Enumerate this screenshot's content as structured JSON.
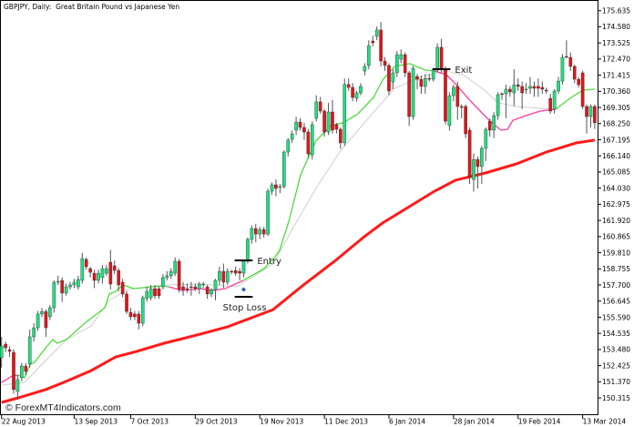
{
  "chart_data": {
    "type": "candlestick",
    "title": "GBPJPY, Daily:  Great Britain Pound vs Japanese Yen",
    "watermark": "© ForexMT4Indicators.com",
    "ylim": [
      149.3,
      176.2
    ],
    "y_ticks": [
      "175.635",
      "174.580",
      "173.525",
      "172.470",
      "171.415",
      "170.360",
      "169.305",
      "168.250",
      "167.195",
      "166.140",
      "165.085",
      "164.030",
      "162.975",
      "161.920",
      "160.865",
      "159.810",
      "158.755",
      "157.700",
      "156.645",
      "155.590",
      "154.535",
      "153.480",
      "152.425",
      "151.370",
      "150.315"
    ],
    "x_ticks": [
      {
        "bar": 0,
        "label": "22 Aug 2013"
      },
      {
        "bar": 18,
        "label": "13 Sep 2013"
      },
      {
        "bar": 32,
        "label": "7 Oct 2013"
      },
      {
        "bar": 48,
        "label": "29 Oct 2013"
      },
      {
        "bar": 64,
        "label": "19 Nov 2013"
      },
      {
        "bar": 80,
        "label": "11 Dec 2013"
      },
      {
        "bar": 96,
        "label": "6 Jan 2014"
      },
      {
        "bar": 112,
        "label": "28 Jan 2014"
      },
      {
        "bar": 128,
        "label": "19 Feb 2014"
      },
      {
        "bar": 144,
        "label": "13 Mar 2014"
      }
    ],
    "colors": {
      "bull": "#1ee07f",
      "bear": "#e0151a",
      "wick": "#555555",
      "slow_ma": "#ff1a1a",
      "fast_up": "#4cdc3c",
      "fast_down": "#ff3aa0",
      "mid_ma": "#cfcfcf",
      "annotation": "#000000",
      "stop_marker": "#1f5fb0"
    },
    "ohlc": [
      [
        152.94,
        154.3,
        152.3,
        153.71
      ],
      [
        153.83,
        154.0,
        153.3,
        153.59
      ],
      [
        153.47,
        153.7,
        153.0,
        153.36
      ],
      [
        153.3,
        153.5,
        150.6,
        150.86
      ],
      [
        150.74,
        151.8,
        150.2,
        151.51
      ],
      [
        151.63,
        152.6,
        151.4,
        152.4
      ],
      [
        152.4,
        152.6,
        151.8,
        152.05
      ],
      [
        152.52,
        154.8,
        152.3,
        154.31
      ],
      [
        154.31,
        155.2,
        154.0,
        154.9
      ],
      [
        154.9,
        156.0,
        154.7,
        155.8
      ],
      [
        155.8,
        156.2,
        155.6,
        155.97
      ],
      [
        155.97,
        156.1,
        154.3,
        154.9
      ],
      [
        155.62,
        156.4,
        155.4,
        156.21
      ],
      [
        156.21,
        158.0,
        155.9,
        157.88
      ],
      [
        157.88,
        158.3,
        157.7,
        157.94
      ],
      [
        158.0,
        158.2,
        156.6,
        157.17
      ],
      [
        157.17,
        157.8,
        157.0,
        157.58
      ],
      [
        157.58,
        157.9,
        157.4,
        157.7
      ],
      [
        157.7,
        158.1,
        157.5,
        157.88
      ],
      [
        157.58,
        158.3,
        157.4,
        158.06
      ],
      [
        158.0,
        159.8,
        157.8,
        159.43
      ],
      [
        159.37,
        159.5,
        158.7,
        158.89
      ],
      [
        158.77,
        158.9,
        158.2,
        158.53
      ],
      [
        158.47,
        158.7,
        157.5,
        158.0
      ],
      [
        158.0,
        158.7,
        157.8,
        158.47
      ],
      [
        158.18,
        159.0,
        157.8,
        158.77
      ],
      [
        158.47,
        159.0,
        158.3,
        158.77
      ],
      [
        159.19,
        160.0,
        157.4,
        157.76
      ],
      [
        158.95,
        159.3,
        158.4,
        158.65
      ],
      [
        158.65,
        158.8,
        157.3,
        157.7
      ],
      [
        157.88,
        158.1,
        156.9,
        157.11
      ],
      [
        157.11,
        157.3,
        155.8,
        155.97
      ],
      [
        155.91,
        156.2,
        155.4,
        155.62
      ],
      [
        155.8,
        156.0,
        155.4,
        155.62
      ],
      [
        155.8,
        156.0,
        154.8,
        155.2
      ],
      [
        155.2,
        157.0,
        155.0,
        156.87
      ],
      [
        156.81,
        157.6,
        156.6,
        157.28
      ],
      [
        156.87,
        157.7,
        156.7,
        157.46
      ],
      [
        157.46,
        157.7,
        156.8,
        156.99
      ],
      [
        157.46,
        157.6,
        156.8,
        156.99
      ],
      [
        157.58,
        158.4,
        157.4,
        158.18
      ],
      [
        158.18,
        158.6,
        158.0,
        158.3
      ],
      [
        158.3,
        158.8,
        158.1,
        158.59
      ],
      [
        158.47,
        159.5,
        158.3,
        159.25
      ],
      [
        159.25,
        159.4,
        157.2,
        157.4
      ],
      [
        157.58,
        157.9,
        157.0,
        157.4
      ],
      [
        157.46,
        157.8,
        157.2,
        157.4
      ],
      [
        157.58,
        157.9,
        157.0,
        157.55
      ],
      [
        157.58,
        157.8,
        157.3,
        157.46
      ],
      [
        157.46,
        157.9,
        157.1,
        157.76
      ],
      [
        157.7,
        157.9,
        157.5,
        157.76
      ],
      [
        157.58,
        157.7,
        156.8,
        157.11
      ],
      [
        157.11,
        157.5,
        156.9,
        157.4
      ],
      [
        157.4,
        158.1,
        156.7,
        158.0
      ],
      [
        158.0,
        158.9,
        157.7,
        158.59
      ],
      [
        158.59,
        159.1,
        157.5,
        157.88
      ],
      [
        157.88,
        158.8,
        157.7,
        158.59
      ],
      [
        158.59,
        158.7,
        158.4,
        158.56
      ],
      [
        158.65,
        158.9,
        158.3,
        158.47
      ],
      [
        158.59,
        158.8,
        158.0,
        158.47
      ],
      [
        158.47,
        159.3,
        158.2,
        159.25
      ],
      [
        159.25,
        160.8,
        159.1,
        160.68
      ],
      [
        160.68,
        161.6,
        160.4,
        161.39
      ],
      [
        161.39,
        161.7,
        160.5,
        161.03
      ],
      [
        161.03,
        161.5,
        160.7,
        161.33
      ],
      [
        161.33,
        161.5,
        160.8,
        161.03
      ],
      [
        161.03,
        164.0,
        160.9,
        163.83
      ],
      [
        163.83,
        164.4,
        163.6,
        164.25
      ],
      [
        164.25,
        164.6,
        163.5,
        164.01
      ],
      [
        164.13,
        164.3,
        163.7,
        164.13
      ],
      [
        164.13,
        166.5,
        164.0,
        166.39
      ],
      [
        166.39,
        167.3,
        166.1,
        167.17
      ],
      [
        167.22,
        167.8,
        167.0,
        167.58
      ],
      [
        167.82,
        168.7,
        167.5,
        168.35
      ],
      [
        168.35,
        168.6,
        167.8,
        168.0
      ],
      [
        168.0,
        168.3,
        167.2,
        167.7
      ],
      [
        167.7,
        167.9,
        166.0,
        166.27
      ],
      [
        166.21,
        168.4,
        165.9,
        168.18
      ],
      [
        168.59,
        170.1,
        168.4,
        169.67
      ],
      [
        169.67,
        170.0,
        168.9,
        169.07
      ],
      [
        169.07,
        169.2,
        167.4,
        167.7
      ],
      [
        167.7,
        169.6,
        167.5,
        169.01
      ],
      [
        169.01,
        169.8,
        167.6,
        167.82
      ],
      [
        168.18,
        168.3,
        167.6,
        167.88
      ],
      [
        167.88,
        168.0,
        166.6,
        166.99
      ],
      [
        166.99,
        171.2,
        166.8,
        170.81
      ],
      [
        170.81,
        171.2,
        170.4,
        170.62
      ],
      [
        170.62,
        170.9,
        169.7,
        169.96
      ],
      [
        169.9,
        170.4,
        169.7,
        170.26
      ],
      [
        170.26,
        170.9,
        170.1,
        170.68
      ],
      [
        171.69,
        172.2,
        171.4,
        171.99
      ],
      [
        172.05,
        173.7,
        171.8,
        173.35
      ],
      [
        173.65,
        174.0,
        173.3,
        173.53
      ],
      [
        173.95,
        174.6,
        173.7,
        174.37
      ],
      [
        174.37,
        174.9,
        172.0,
        172.34
      ],
      [
        172.34,
        172.6,
        171.7,
        172.05
      ],
      [
        172.05,
        172.2,
        170.1,
        170.38
      ],
      [
        170.97,
        171.8,
        170.5,
        171.57
      ],
      [
        171.57,
        173.0,
        171.3,
        172.76
      ],
      [
        172.46,
        173.1,
        172.2,
        172.76
      ],
      [
        172.76,
        172.9,
        171.3,
        171.57
      ],
      [
        171.57,
        171.7,
        168.1,
        168.71
      ],
      [
        168.71,
        172.0,
        168.5,
        171.87
      ],
      [
        171.33,
        171.5,
        170.5,
        171.15
      ],
      [
        171.15,
        171.4,
        170.2,
        170.68
      ],
      [
        170.68,
        171.5,
        170.2,
        171.21
      ],
      [
        171.21,
        171.5,
        171.0,
        171.15
      ],
      [
        171.15,
        171.9,
        171.0,
        171.75
      ],
      [
        171.75,
        173.5,
        171.6,
        173.24
      ],
      [
        173.24,
        173.8,
        171.6,
        171.87
      ],
      [
        171.75,
        172.0,
        168.2,
        168.41
      ],
      [
        168.12,
        170.3,
        167.8,
        170.08
      ],
      [
        170.08,
        170.8,
        169.7,
        170.62
      ],
      [
        170.68,
        171.0,
        168.5,
        169.37
      ],
      [
        169.37,
        169.5,
        168.6,
        169.31
      ],
      [
        169.37,
        169.5,
        167.3,
        167.58
      ],
      [
        167.82,
        168.0,
        164.3,
        164.72
      ],
      [
        164.6,
        166.3,
        163.8,
        165.91
      ],
      [
        165.91,
        166.1,
        164.0,
        165.44
      ],
      [
        165.44,
        166.8,
        164.3,
        166.63
      ],
      [
        166.63,
        168.0,
        165.8,
        167.88
      ],
      [
        168.41,
        168.6,
        167.4,
        167.82
      ],
      [
        167.82,
        169.0,
        167.3,
        168.77
      ],
      [
        168.77,
        170.3,
        168.5,
        170.14
      ],
      [
        170.2,
        170.3,
        169.8,
        170.17
      ],
      [
        170.2,
        170.8,
        168.6,
        170.5
      ],
      [
        170.5,
        170.7,
        170.0,
        170.32
      ],
      [
        170.26,
        171.8,
        169.4,
        170.79
      ],
      [
        170.79,
        171.2,
        170.4,
        170.68
      ],
      [
        170.68,
        171.0,
        169.2,
        170.26
      ],
      [
        170.5,
        170.9,
        170.2,
        170.5
      ],
      [
        170.56,
        171.3,
        170.2,
        170.68
      ],
      [
        170.68,
        171.0,
        170.0,
        170.56
      ],
      [
        170.68,
        171.2,
        170.0,
        170.56
      ],
      [
        170.62,
        171.0,
        170.2,
        170.5
      ],
      [
        170.44,
        170.6,
        170.2,
        170.38
      ],
      [
        169.9,
        170.2,
        168.9,
        169.07
      ],
      [
        169.19,
        170.5,
        168.9,
        170.38
      ],
      [
        170.38,
        171.3,
        170.2,
        171.03
      ],
      [
        171.03,
        172.8,
        170.8,
        172.58
      ],
      [
        172.64,
        173.7,
        172.5,
        172.62
      ],
      [
        172.58,
        172.9,
        171.7,
        171.99
      ],
      [
        171.99,
        172.1,
        170.9,
        171.15
      ],
      [
        171.15,
        171.3,
        170.6,
        170.79
      ],
      [
        171.57,
        171.7,
        169.2,
        169.37
      ],
      [
        169.37,
        169.5,
        167.6,
        168.71
      ],
      [
        168.71,
        169.5,
        168.0,
        169.37
      ],
      [
        169.37,
        169.5,
        167.9,
        168.3
      ]
    ],
    "slow_ma": [
      [
        0,
        150.02
      ],
      [
        4.1,
        150.32
      ],
      [
        10.9,
        150.86
      ],
      [
        15.4,
        151.33
      ],
      [
        22.2,
        152.1
      ],
      [
        28.3,
        153.0
      ],
      [
        33.5,
        153.36
      ],
      [
        40.3,
        153.89
      ],
      [
        44.8,
        154.19
      ],
      [
        49.3,
        154.49
      ],
      [
        56,
        154.96
      ],
      [
        67.3,
        156.09
      ],
      [
        74.8,
        157.7
      ],
      [
        82.5,
        159.25
      ],
      [
        89.9,
        160.86
      ],
      [
        94.4,
        161.75
      ],
      [
        107.3,
        163.83
      ],
      [
        112.5,
        164.55
      ],
      [
        119.9,
        165.02
      ],
      [
        127.6,
        165.62
      ],
      [
        135,
        166.39
      ],
      [
        142.5,
        166.99
      ],
      [
        147,
        167.17
      ]
    ],
    "mid_ma": [
      [
        0,
        151.15
      ],
      [
        5.7,
        151.33
      ],
      [
        11.6,
        152.94
      ],
      [
        16.1,
        154.13
      ],
      [
        22.2,
        155.02
      ],
      [
        26.7,
        156.69
      ],
      [
        31.2,
        157.4
      ],
      [
        40.3,
        157.7
      ],
      [
        49.3,
        157.76
      ],
      [
        58.3,
        157.58
      ],
      [
        67.3,
        159.07
      ],
      [
        71.9,
        161.27
      ],
      [
        77.9,
        164.01
      ],
      [
        83.8,
        166.39
      ],
      [
        89.9,
        168.3
      ],
      [
        97.4,
        170.56
      ],
      [
        105,
        171.39
      ],
      [
        110.2,
        171.69
      ],
      [
        114.7,
        171.39
      ],
      [
        119.9,
        170.38
      ],
      [
        123,
        169.61
      ],
      [
        127.6,
        169.37
      ],
      [
        133.5,
        169.25
      ],
      [
        137.3,
        169.19
      ]
    ],
    "fast_ma": [
      {
        "trend": "down",
        "points": [
          [
            0,
            151.33
          ],
          [
            1.2,
            151.51
          ],
          [
            2.6,
            151.75
          ],
          [
            4.1,
            151.81
          ]
        ]
      },
      {
        "trend": "up",
        "points": [
          [
            4.1,
            151.81
          ],
          [
            5.7,
            151.63
          ],
          [
            7.1,
            152.52
          ],
          [
            8.2,
            152.64
          ],
          [
            10.9,
            153.59
          ],
          [
            12.7,
            154.13
          ],
          [
            13.8,
            153.89
          ],
          [
            16.1,
            154.13
          ],
          [
            20.6,
            155.2
          ],
          [
            25.6,
            156.21
          ],
          [
            26.7,
            157.11
          ],
          [
            28.3,
            157.28
          ],
          [
            30.1,
            157.7
          ],
          [
            32.8,
            157.46
          ],
          [
            39.6,
            157.64
          ],
          [
            41.4,
            157.58
          ]
        ]
      },
      {
        "trend": "down",
        "points": [
          [
            41.4,
            157.58
          ],
          [
            44.8,
            157.34
          ],
          [
            49.3,
            157.46
          ],
          [
            52.2,
            157.34
          ],
          [
            55.4,
            157.46
          ],
          [
            59.9,
            158.0
          ]
        ]
      },
      {
        "trend": "up",
        "points": [
          [
            59.9,
            158.0
          ],
          [
            65.1,
            158.77
          ],
          [
            67.8,
            159.55
          ],
          [
            68.9,
            159.96
          ],
          [
            71.2,
            161.87
          ],
          [
            74.1,
            164.9
          ],
          [
            77.9,
            167.11
          ],
          [
            81.6,
            168.12
          ],
          [
            84.7,
            168.3
          ],
          [
            88.3,
            168.89
          ],
          [
            92.2,
            169.96
          ],
          [
            94.4,
            171.09
          ],
          [
            97.4,
            171.99
          ],
          [
            101.2,
            172.17
          ],
          [
            105.0,
            171.75
          ],
          [
            107.3,
            171.69
          ]
        ]
      },
      {
        "trend": "down",
        "points": [
          [
            107.3,
            171.69
          ],
          [
            110.2,
            171.45
          ],
          [
            112.5,
            170.85
          ],
          [
            115.4,
            169.96
          ],
          [
            118.6,
            169.07
          ],
          [
            121.5,
            168.3
          ],
          [
            123.8,
            167.82
          ],
          [
            125.4,
            167.88
          ],
          [
            126.7,
            168.47
          ],
          [
            129.9,
            168.77
          ],
          [
            133.5,
            169.07
          ],
          [
            137.3,
            169.19
          ]
        ]
      },
      {
        "trend": "up",
        "points": [
          [
            137.3,
            169.19
          ],
          [
            141.2,
            169.96
          ],
          [
            144.1,
            170.44
          ],
          [
            147,
            170.5
          ]
        ]
      }
    ],
    "annotations": [
      {
        "label": "Entry",
        "price": 159.31,
        "from_bar": 58,
        "to_bar": 62
      },
      {
        "label": "Stop Loss",
        "price": 156.93,
        "from_bar": 58,
        "to_bar": 62,
        "marker_price": 157.4,
        "marker_bar": 60
      },
      {
        "label": "Exit",
        "price": 171.81,
        "from_bar": 107,
        "to_bar": 111
      }
    ]
  }
}
